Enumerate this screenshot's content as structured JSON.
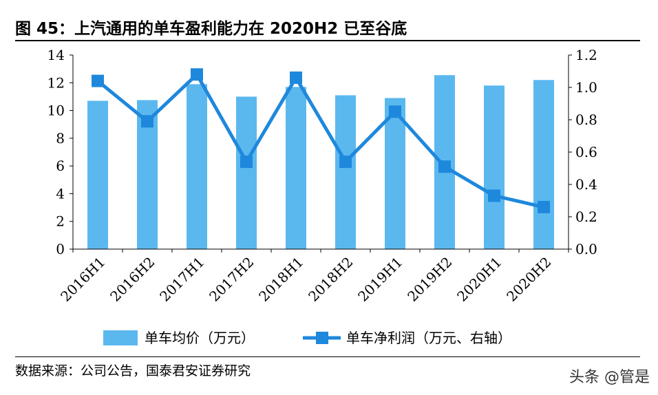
{
  "title": "图 45：上汽通用的单车盈利能力在 2020H2 已至谷底",
  "source": "数据来源：公司公告，国泰君安证券研究",
  "watermark": "头条 @管是",
  "chart_data": {
    "type": "bar+line",
    "categories": [
      "2016H1",
      "2016H2",
      "2017H1",
      "2017H2",
      "2018H1",
      "2018H2",
      "2019H1",
      "2019H2",
      "2020H1",
      "2020H2"
    ],
    "series": [
      {
        "name": "单车均价（万元）",
        "type": "bar",
        "axis": "left",
        "color": "#5bb8ef",
        "values": [
          10.7,
          10.75,
          11.9,
          11.0,
          11.7,
          11.1,
          10.9,
          12.55,
          11.8,
          12.2
        ]
      },
      {
        "name": "单车净利润（万元、右轴）",
        "type": "line",
        "axis": "right",
        "color": "#1e88dc",
        "values": [
          1.04,
          0.79,
          1.08,
          0.54,
          1.06,
          0.54,
          0.85,
          0.51,
          0.33,
          0.26
        ]
      }
    ],
    "y_left": {
      "min": 0,
      "max": 14,
      "ticks": [
        "0",
        "2",
        "4",
        "6",
        "8",
        "10",
        "12",
        "14"
      ]
    },
    "y_right": {
      "min": 0,
      "max": 1.2,
      "ticks": [
        "0.0",
        "0.2",
        "0.4",
        "0.6",
        "0.8",
        "1.0",
        "1.2"
      ]
    },
    "grid": false,
    "legend_position": "bottom"
  }
}
